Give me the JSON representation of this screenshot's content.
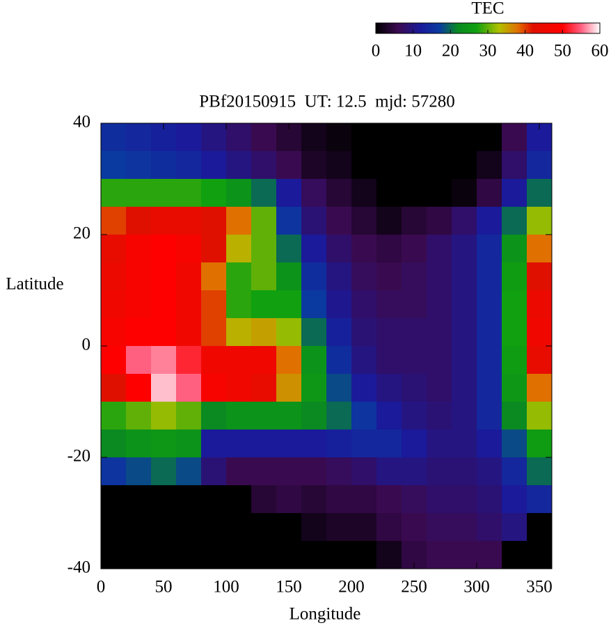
{
  "chart_data": {
    "type": "heatmap",
    "title": "PBf20150915  UT: 12.5  mjd: 57280",
    "x_label": "Longitude",
    "y_label": "Latitude",
    "colorbar_label": "TEC",
    "xlim": [
      0,
      360
    ],
    "ylim": [
      -40,
      40
    ],
    "xticks": [
      0,
      50,
      100,
      150,
      200,
      250,
      300,
      350
    ],
    "yticks": [
      -40,
      -20,
      0,
      20,
      40
    ],
    "clim": [
      0,
      60
    ],
    "cticks": [
      0,
      10,
      20,
      30,
      40,
      50,
      60
    ],
    "colormap": [
      {
        "value": 0,
        "color": "#000000"
      },
      {
        "value": 6,
        "color": "#3a0a50"
      },
      {
        "value": 12,
        "color": "#1a1a9a"
      },
      {
        "value": 17,
        "color": "#0a3aa0"
      },
      {
        "value": 22,
        "color": "#0a8a20"
      },
      {
        "value": 27,
        "color": "#10a010"
      },
      {
        "value": 33,
        "color": "#b0c000"
      },
      {
        "value": 38,
        "color": "#e07000"
      },
      {
        "value": 42,
        "color": "#e01000"
      },
      {
        "value": 50,
        "color": "#ff0000"
      },
      {
        "value": 55,
        "color": "#ff6080"
      },
      {
        "value": 60,
        "color": "#ffffff"
      }
    ],
    "x": [
      10,
      30,
      50,
      70,
      90,
      110,
      130,
      150,
      170,
      190,
      210,
      230,
      250,
      270,
      290,
      310,
      330,
      350
    ],
    "y": [
      37.5,
      32.5,
      27.5,
      22.5,
      17.5,
      12.5,
      7.5,
      2.5,
      -2.5,
      -7.5,
      -12.5,
      -17.5,
      -22.5,
      -27.5,
      -32.5,
      -37.5
    ],
    "z": [
      [
        15,
        14,
        13,
        12,
        10,
        8,
        6,
        4,
        2,
        1,
        0,
        0,
        0,
        0,
        0,
        0,
        6,
        12
      ],
      [
        17,
        16,
        15,
        14,
        12,
        10,
        8,
        6,
        3,
        2,
        0,
        0,
        0,
        0,
        0,
        2,
        8,
        14
      ],
      [
        28,
        28,
        28,
        28,
        27,
        24,
        20,
        12,
        7,
        4,
        2,
        0,
        0,
        0,
        1,
        5,
        12,
        20
      ],
      [
        40,
        42,
        44,
        44,
        42,
        38,
        30,
        16,
        9,
        6,
        4,
        2,
        4,
        5,
        8,
        12,
        20,
        32
      ],
      [
        44,
        48,
        50,
        48,
        42,
        34,
        30,
        20,
        12,
        8,
        6,
        5,
        6,
        8,
        10,
        14,
        24,
        38
      ],
      [
        45,
        48,
        50,
        46,
        38,
        28,
        30,
        24,
        15,
        10,
        7,
        6,
        7,
        8,
        10,
        14,
        26,
        42
      ],
      [
        46,
        48,
        50,
        46,
        40,
        28,
        27,
        27,
        17,
        11,
        8,
        7,
        7,
        8,
        10,
        14,
        27,
        45
      ],
      [
        48,
        50,
        50,
        46,
        40,
        34,
        35,
        32,
        20,
        13,
        9,
        8,
        8,
        8,
        10,
        14,
        27,
        46
      ],
      [
        50,
        55,
        56,
        52,
        46,
        46,
        46,
        38,
        24,
        15,
        10,
        8,
        8,
        8,
        10,
        14,
        26,
        44
      ],
      [
        42,
        50,
        58,
        55,
        48,
        46,
        44,
        36,
        25,
        18,
        12,
        10,
        9,
        8,
        10,
        14,
        25,
        38
      ],
      [
        28,
        30,
        32,
        30,
        22,
        24,
        24,
        24,
        22,
        20,
        16,
        12,
        10,
        9,
        10,
        14,
        22,
        32
      ],
      [
        22,
        24,
        25,
        24,
        12,
        12,
        12,
        12,
        12,
        13,
        14,
        14,
        12,
        10,
        10,
        12,
        18,
        26
      ],
      [
        16,
        18,
        20,
        18,
        9,
        6,
        6,
        6,
        6,
        7,
        8,
        10,
        10,
        9,
        9,
        10,
        14,
        20
      ],
      [
        0,
        0,
        0,
        0,
        0,
        0,
        4,
        5,
        4,
        5,
        5,
        6,
        7,
        8,
        8,
        9,
        12,
        14
      ],
      [
        0,
        0,
        0,
        0,
        0,
        0,
        0,
        0,
        2,
        3,
        3,
        5,
        6,
        7,
        7,
        8,
        10,
        0
      ],
      [
        0,
        0,
        0,
        0,
        0,
        0,
        0,
        0,
        0,
        0,
        0,
        2,
        5,
        6,
        6,
        6,
        0,
        0
      ]
    ]
  }
}
